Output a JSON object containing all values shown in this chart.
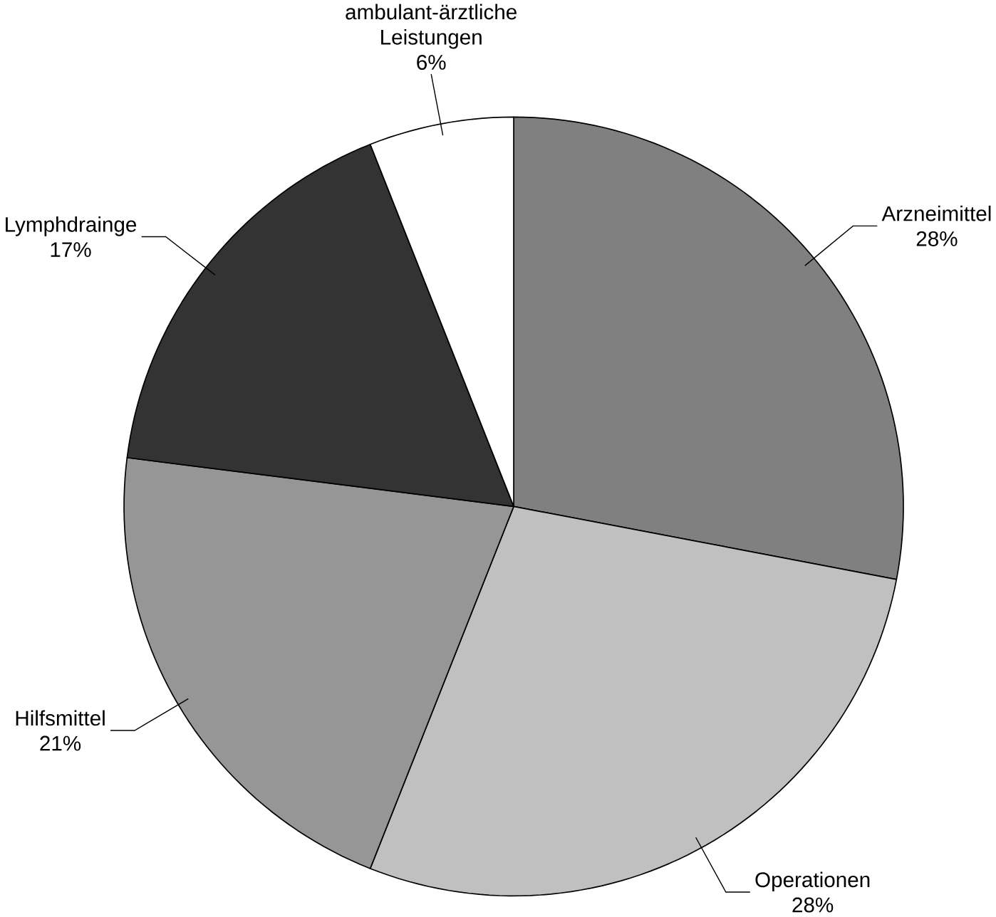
{
  "chart_data": {
    "type": "pie",
    "categories": [
      "Arzneimittel",
      "Operationen",
      "Hilfsmittel",
      "Lymphdrainge",
      "ambulant-ärztliche Leistungen"
    ],
    "values": [
      28,
      28,
      21,
      17,
      6
    ],
    "value_labels": [
      "28%",
      "28%",
      "21%",
      "17%",
      "6%"
    ],
    "colors": [
      "#808080",
      "#c0c0c0",
      "#969696",
      "#333333",
      "#ffffff"
    ]
  }
}
